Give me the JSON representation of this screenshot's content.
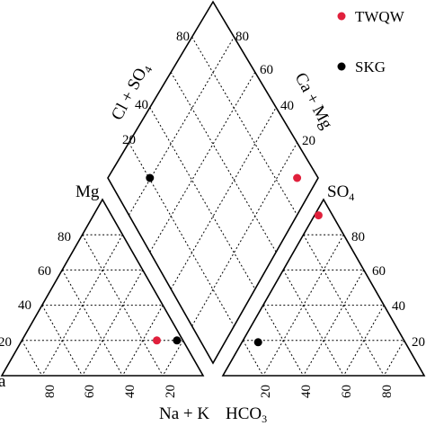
{
  "chart_data": {
    "type": "scatter",
    "subtype": "piper-diagram",
    "legend": {
      "placement": "top-right",
      "entries": [
        {
          "name": "TWQW",
          "color": "#e0203c"
        },
        {
          "name": "SKG",
          "color": "#000000"
        }
      ]
    },
    "diamond": {
      "left_label": "Cl + SO",
      "left_label_sub": "4",
      "right_label": "Ca + Mg",
      "ticks": [
        "20",
        "40",
        "60",
        "80"
      ],
      "points": [
        {
          "series": "TWQW",
          "cl_so4": 90,
          "ca_mg": 10
        },
        {
          "series": "SKG",
          "cl_so4": 20,
          "ca_mg": 80
        }
      ]
    },
    "cation_triangle": {
      "top_label": "Mg",
      "bottom_left_label": "a",
      "bottom_right_label": "Na + K",
      "left_ticks": [
        "20",
        "40",
        "60",
        "80"
      ],
      "bottom_ticks": [
        "80",
        "60",
        "40",
        "20"
      ],
      "points": [
        {
          "series": "SKG",
          "mg": 20,
          "na_k": 77
        },
        {
          "series": "TWQW",
          "mg": 20,
          "na_k": 67
        }
      ]
    },
    "anion_triangle": {
      "top_label": "SO",
      "top_label_sub": "4",
      "bottom_left_label": "HCO",
      "bottom_left_label_sub": "3",
      "right_ticks": [
        "20",
        "40",
        "60",
        "80"
      ],
      "bottom_ticks": [
        "20",
        "40",
        "60",
        "80"
      ],
      "points": [
        {
          "series": "TWQW",
          "so4": 91,
          "cl": 2
        },
        {
          "series": "SKG",
          "so4": 19,
          "cl": 8
        }
      ]
    }
  }
}
